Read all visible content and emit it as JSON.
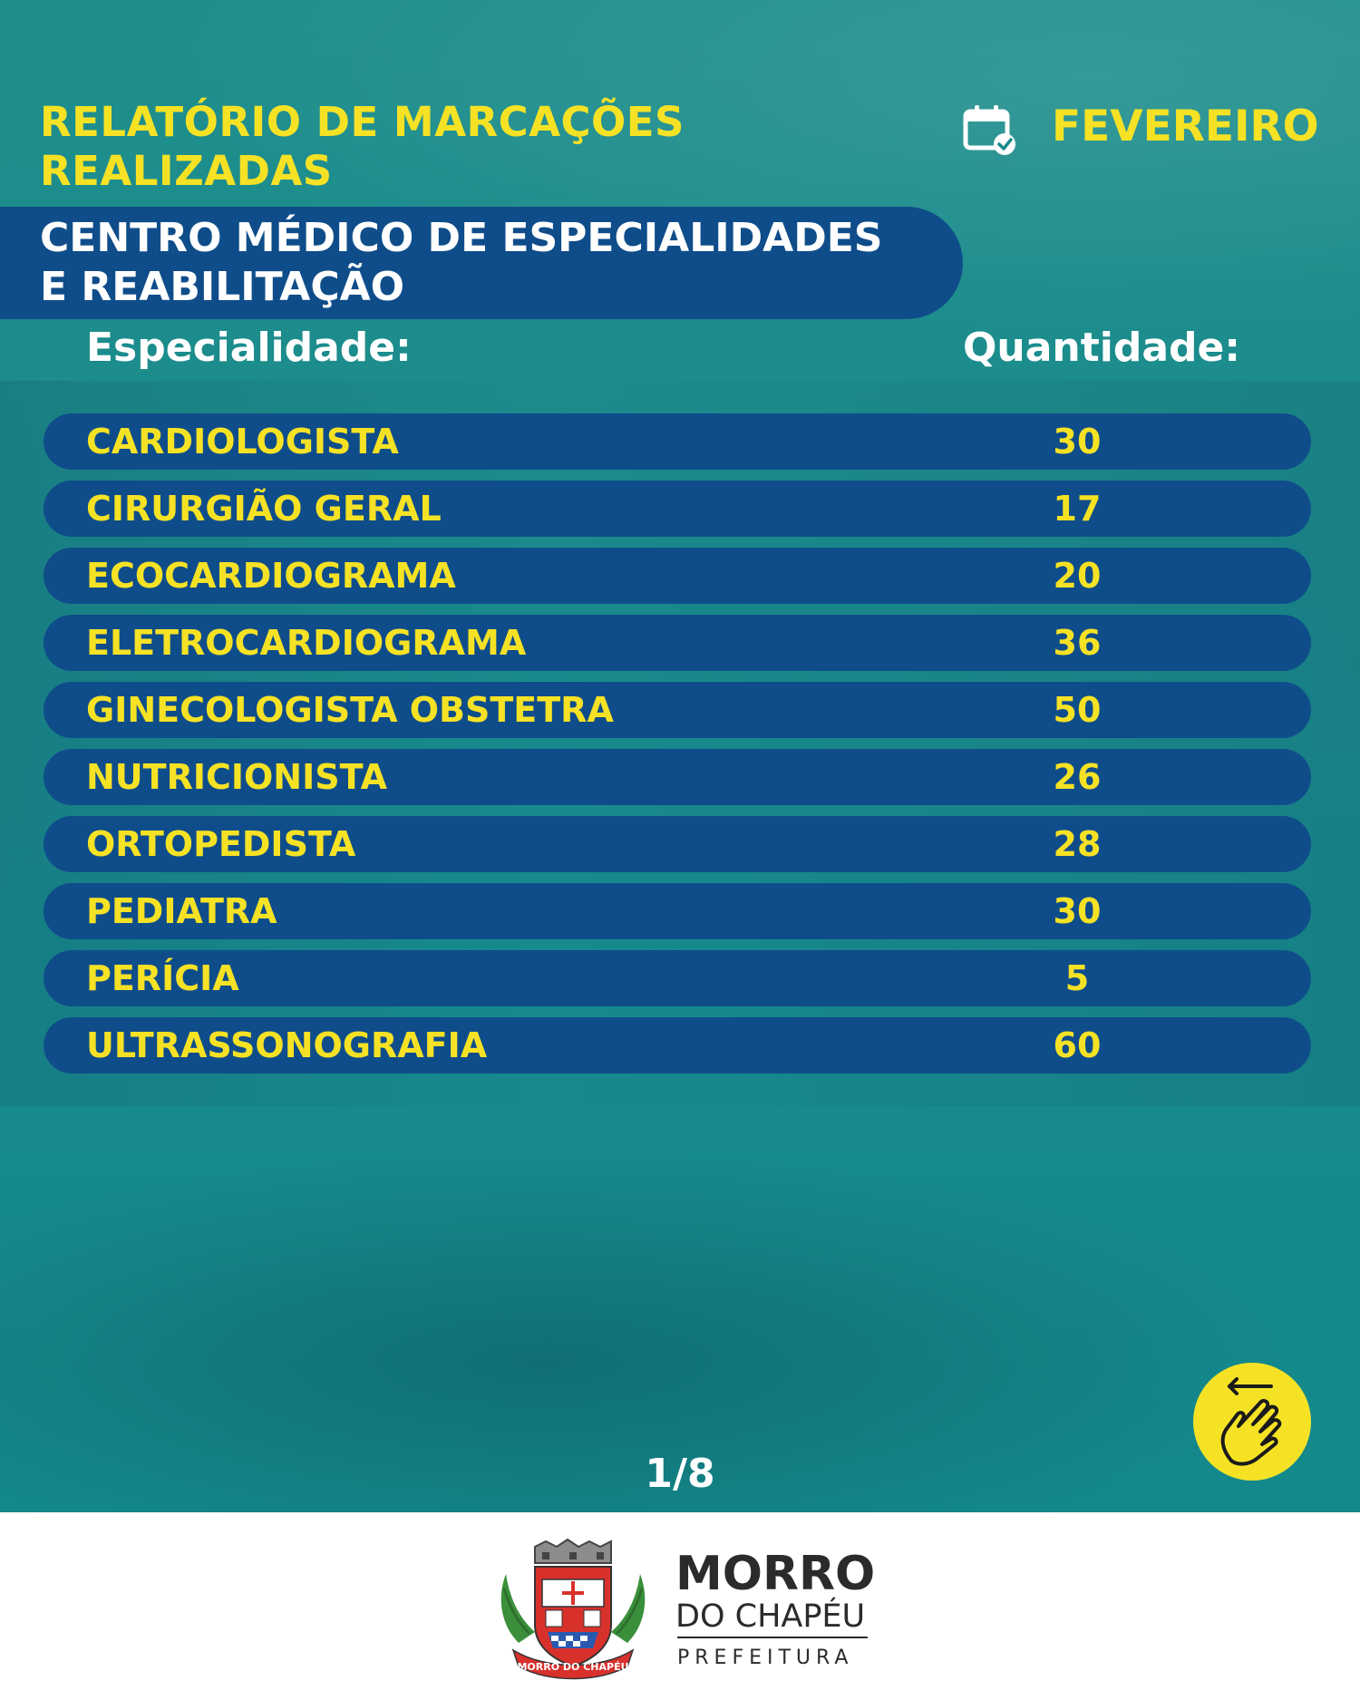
{
  "header": {
    "title_line1": "RELATÓRIO DE MARCAÇÕES",
    "title_line2": "REALIZADAS",
    "month": "FEVEREIRO",
    "calendar_icon": "calendar-check-icon"
  },
  "center": {
    "line1": "CENTRO MÉDICO DE ESPECIALIDADES",
    "line2": "E REABILITAÇÃO"
  },
  "table": {
    "col_specialty": "Especialidade:",
    "col_quantity": "Quantidade:",
    "rows": [
      {
        "name": "CARDIOLOGISTA",
        "qty": "30"
      },
      {
        "name": "CIRURGIÃO GERAL",
        "qty": "17"
      },
      {
        "name": "ECOCARDIOGRAMA",
        "qty": "20"
      },
      {
        "name": "ELETROCARDIOGRAMA",
        "qty": "36"
      },
      {
        "name": "GINECOLOGISTA OBSTETRA",
        "qty": "50"
      },
      {
        "name": "NUTRICIONISTA",
        "qty": "26"
      },
      {
        "name": "ORTOPEDISTA",
        "qty": "28"
      },
      {
        "name": "PEDIATRA",
        "qty": "30"
      },
      {
        "name": "PERÍCIA",
        "qty": "5"
      },
      {
        "name": "ULTRASSONOGRAFIA",
        "qty": "60"
      }
    ]
  },
  "pager": "1/8",
  "swipe_icon": "swipe-hand-icon",
  "footer": {
    "brand_line1": "MORRO",
    "brand_line2": "DO CHAPÉU",
    "brand_line3": "PREFEITURA",
    "crest_text": "MORRO DO CHAPÉU"
  },
  "colors": {
    "background": "#1a8a8c",
    "accent_yellow": "#f6e225",
    "banner_blue": "#0f4d8a",
    "white": "#ffffff"
  }
}
